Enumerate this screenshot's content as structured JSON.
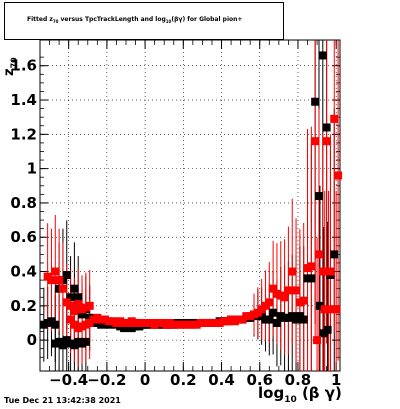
{
  "title": {
    "prefix": "Fitted  z",
    "prefix_sub": "70",
    "middle": "  versus TpcTrackLength and log",
    "middle_sub": "10",
    "suffix": "(βγ) for Global pion+"
  },
  "timestamp": "Tue Dec 21 13:42:38 2021",
  "xlabel": {
    "main": "log",
    "sub": "10",
    "tail": "(β γ)"
  },
  "ylabel": {
    "main": "z",
    "sub": "70"
  },
  "colors": {
    "series_black": "#000000",
    "series_red": "#ff0000"
  },
  "chart_data": {
    "type": "scatter",
    "title": "Fitted z70 versus TpcTrackLength and log10(βγ) for Global pion+",
    "xlabel": "log10(β γ)",
    "ylabel": "z70",
    "xlim": [
      -0.55,
      1.02
    ],
    "ylim": [
      -0.18,
      1.75
    ],
    "grid": true,
    "x_ticks": [
      -0.4,
      -0.2,
      0,
      0.2,
      0.4,
      0.6,
      0.8,
      1
    ],
    "x_tick_labels": [
      "−0.4",
      "−0.2",
      "0",
      "0.2",
      "0.4",
      "0.6",
      "0.8",
      "1"
    ],
    "y_ticks": [
      0,
      0.2,
      0.4,
      0.6,
      0.8,
      1,
      1.2,
      1.4,
      1.6
    ],
    "y_tick_labels": [
      "0",
      "0.2",
      "0.4",
      "0.6",
      "0.8",
      "1",
      "1.2",
      "1.4",
      "1.6"
    ],
    "series": [
      {
        "color": "#000000",
        "points": [
          {
            "x": -0.53,
            "y": 0.09
          },
          {
            "x": -0.51,
            "y": 0.1
          },
          {
            "x": -0.49,
            "y": 0.11
          },
          {
            "x": -0.47,
            "y": 0.09
          },
          {
            "x": -0.45,
            "y": 0.3
          },
          {
            "x": -0.43,
            "y": 0.35
          },
          {
            "x": -0.41,
            "y": 0.38
          },
          {
            "x": -0.39,
            "y": 0.25
          },
          {
            "x": -0.37,
            "y": 0.3
          },
          {
            "x": -0.35,
            "y": 0.25
          },
          {
            "x": -0.33,
            "y": 0.15
          },
          {
            "x": -0.31,
            "y": 0.18
          },
          {
            "x": -0.29,
            "y": 0.13
          },
          {
            "x": -0.27,
            "y": 0.1
          },
          {
            "x": -0.47,
            "y": -0.02
          },
          {
            "x": -0.45,
            "y": -0.01
          },
          {
            "x": -0.43,
            "y": -0.03
          },
          {
            "x": -0.41,
            "y": 0.0
          },
          {
            "x": -0.39,
            "y": -0.02
          },
          {
            "x": -0.37,
            "y": -0.03
          },
          {
            "x": -0.35,
            "y": -0.01
          },
          {
            "x": -0.33,
            "y": -0.02
          },
          {
            "x": -0.31,
            "y": -0.01
          },
          {
            "x": -0.25,
            "y": 0.1
          },
          {
            "x": -0.23,
            "y": 0.09
          },
          {
            "x": -0.21,
            "y": 0.1
          },
          {
            "x": -0.19,
            "y": 0.09
          },
          {
            "x": -0.17,
            "y": 0.1
          },
          {
            "x": -0.15,
            "y": 0.09
          },
          {
            "x": -0.13,
            "y": 0.08
          },
          {
            "x": -0.11,
            "y": 0.07
          },
          {
            "x": -0.09,
            "y": 0.08
          },
          {
            "x": -0.07,
            "y": 0.07
          },
          {
            "x": -0.05,
            "y": 0.08
          },
          {
            "x": -0.03,
            "y": 0.08
          },
          {
            "x": -0.01,
            "y": 0.09
          },
          {
            "x": 0.01,
            "y": 0.09
          },
          {
            "x": 0.03,
            "y": 0.09
          },
          {
            "x": 0.05,
            "y": 0.09
          },
          {
            "x": 0.07,
            "y": 0.09
          },
          {
            "x": 0.09,
            "y": 0.09
          },
          {
            "x": 0.11,
            "y": 0.09
          },
          {
            "x": 0.13,
            "y": 0.09
          },
          {
            "x": 0.15,
            "y": 0.09
          },
          {
            "x": 0.17,
            "y": 0.1
          },
          {
            "x": 0.19,
            "y": 0.1
          },
          {
            "x": 0.21,
            "y": 0.1
          },
          {
            "x": 0.23,
            "y": 0.1
          },
          {
            "x": 0.25,
            "y": 0.1
          },
          {
            "x": 0.27,
            "y": 0.1
          },
          {
            "x": 0.29,
            "y": 0.1
          },
          {
            "x": 0.31,
            "y": 0.1
          },
          {
            "x": 0.33,
            "y": 0.1
          },
          {
            "x": 0.35,
            "y": 0.1
          },
          {
            "x": 0.37,
            "y": 0.1
          },
          {
            "x": 0.39,
            "y": 0.11
          },
          {
            "x": 0.41,
            "y": 0.11
          },
          {
            "x": 0.43,
            "y": 0.11
          },
          {
            "x": 0.45,
            "y": 0.12
          },
          {
            "x": 0.47,
            "y": 0.12
          },
          {
            "x": 0.49,
            "y": 0.12
          },
          {
            "x": 0.51,
            "y": 0.12
          },
          {
            "x": 0.53,
            "y": 0.13
          },
          {
            "x": 0.55,
            "y": 0.13
          },
          {
            "x": 0.57,
            "y": 0.14
          },
          {
            "x": 0.59,
            "y": 0.15
          },
          {
            "x": 0.61,
            "y": 0.14
          },
          {
            "x": 0.63,
            "y": 0.12
          },
          {
            "x": 0.65,
            "y": 0.12
          },
          {
            "x": 0.67,
            "y": 0.16
          },
          {
            "x": 0.69,
            "y": 0.1
          },
          {
            "x": 0.71,
            "y": 0.14
          },
          {
            "x": 0.73,
            "y": 0.13
          },
          {
            "x": 0.75,
            "y": 0.13
          },
          {
            "x": 0.77,
            "y": 0.14
          },
          {
            "x": 0.79,
            "y": 0.12
          },
          {
            "x": 0.81,
            "y": 0.14
          },
          {
            "x": 0.83,
            "y": 0.12
          },
          {
            "x": 0.85,
            "y": 0.36
          },
          {
            "x": 0.87,
            "y": 0.36
          },
          {
            "x": 0.89,
            "y": 1.39
          },
          {
            "x": 0.91,
            "y": 0.84
          },
          {
            "x": 0.93,
            "y": 1.66
          },
          {
            "x": 0.95,
            "y": 1.24
          },
          {
            "x": 0.97,
            "y": 0.38
          },
          {
            "x": 0.99,
            "y": 0.5
          },
          {
            "x": 0.915,
            "y": 0.2
          },
          {
            "x": 0.935,
            "y": 0.04
          },
          {
            "x": 0.955,
            "y": 0.06
          }
        ]
      },
      {
        "color": "#ff0000",
        "points": [
          {
            "x": -0.51,
            "y": 0.37
          },
          {
            "x": -0.49,
            "y": 0.35
          },
          {
            "x": -0.47,
            "y": 0.4
          },
          {
            "x": -0.45,
            "y": 0.35
          },
          {
            "x": -0.43,
            "y": 0.3
          },
          {
            "x": -0.41,
            "y": 0.22
          },
          {
            "x": -0.39,
            "y": 0.2
          },
          {
            "x": -0.37,
            "y": 0.17
          },
          {
            "x": -0.35,
            "y": 0.21
          },
          {
            "x": -0.33,
            "y": 0.18
          },
          {
            "x": -0.31,
            "y": 0.19
          },
          {
            "x": -0.29,
            "y": 0.2
          },
          {
            "x": -0.27,
            "y": 0.12
          },
          {
            "x": -0.25,
            "y": 0.13
          },
          {
            "x": -0.23,
            "y": 0.12
          },
          {
            "x": -0.39,
            "y": 0.12
          },
          {
            "x": -0.37,
            "y": 0.09
          },
          {
            "x": -0.35,
            "y": 0.07
          },
          {
            "x": -0.33,
            "y": 0.08
          },
          {
            "x": -0.31,
            "y": 0.09
          },
          {
            "x": -0.29,
            "y": 0.1
          },
          {
            "x": -0.21,
            "y": 0.12
          },
          {
            "x": -0.19,
            "y": 0.11
          },
          {
            "x": -0.17,
            "y": 0.11
          },
          {
            "x": -0.15,
            "y": 0.1
          },
          {
            "x": -0.13,
            "y": 0.11
          },
          {
            "x": -0.11,
            "y": 0.1
          },
          {
            "x": -0.09,
            "y": 0.1
          },
          {
            "x": -0.07,
            "y": 0.11
          },
          {
            "x": -0.05,
            "y": 0.1
          },
          {
            "x": -0.03,
            "y": 0.1
          },
          {
            "x": -0.01,
            "y": 0.1
          },
          {
            "x": 0.01,
            "y": 0.1
          },
          {
            "x": 0.03,
            "y": 0.1
          },
          {
            "x": 0.05,
            "y": 0.09
          },
          {
            "x": 0.07,
            "y": 0.1
          },
          {
            "x": 0.09,
            "y": 0.1
          },
          {
            "x": 0.11,
            "y": 0.09
          },
          {
            "x": 0.13,
            "y": 0.1
          },
          {
            "x": 0.15,
            "y": 0.09
          },
          {
            "x": 0.17,
            "y": 0.09
          },
          {
            "x": 0.19,
            "y": 0.09
          },
          {
            "x": 0.21,
            "y": 0.09
          },
          {
            "x": 0.23,
            "y": 0.09
          },
          {
            "x": 0.25,
            "y": 0.09
          },
          {
            "x": 0.27,
            "y": 0.09
          },
          {
            "x": 0.29,
            "y": 0.1
          },
          {
            "x": 0.31,
            "y": 0.1
          },
          {
            "x": 0.33,
            "y": 0.1
          },
          {
            "x": 0.35,
            "y": 0.1
          },
          {
            "x": 0.37,
            "y": 0.1
          },
          {
            "x": 0.39,
            "y": 0.1
          },
          {
            "x": 0.41,
            "y": 0.11
          },
          {
            "x": 0.43,
            "y": 0.11
          },
          {
            "x": 0.45,
            "y": 0.12
          },
          {
            "x": 0.47,
            "y": 0.11
          },
          {
            "x": 0.49,
            "y": 0.12
          },
          {
            "x": 0.51,
            "y": 0.12
          },
          {
            "x": 0.53,
            "y": 0.14
          },
          {
            "x": 0.55,
            "y": 0.14
          },
          {
            "x": 0.57,
            "y": 0.15
          },
          {
            "x": 0.59,
            "y": 0.16
          },
          {
            "x": 0.61,
            "y": 0.18
          },
          {
            "x": 0.63,
            "y": 0.2
          },
          {
            "x": 0.65,
            "y": 0.22
          },
          {
            "x": 0.67,
            "y": 0.3
          },
          {
            "x": 0.69,
            "y": 0.27
          },
          {
            "x": 0.71,
            "y": 0.26
          },
          {
            "x": 0.73,
            "y": 0.25
          },
          {
            "x": 0.75,
            "y": 0.29
          },
          {
            "x": 0.77,
            "y": 0.4
          },
          {
            "x": 0.79,
            "y": 0.29
          },
          {
            "x": 0.81,
            "y": 0.22
          },
          {
            "x": 0.83,
            "y": 0.23
          },
          {
            "x": 0.85,
            "y": 0.42
          },
          {
            "x": 0.87,
            "y": 0.43
          },
          {
            "x": 0.89,
            "y": 1.16
          },
          {
            "x": 0.91,
            "y": 0.5
          },
          {
            "x": 0.93,
            "y": 0.4
          },
          {
            "x": 0.95,
            "y": 1.16
          },
          {
            "x": 0.97,
            "y": 0.4
          },
          {
            "x": 0.99,
            "y": 1.29
          },
          {
            "x": 1.01,
            "y": 0.96
          },
          {
            "x": 0.94,
            "y": 0.18
          },
          {
            "x": 0.96,
            "y": 0.18
          },
          {
            "x": 1.0,
            "y": 0.18
          },
          {
            "x": 0.9,
            "y": 0.0
          }
        ]
      }
    ]
  }
}
